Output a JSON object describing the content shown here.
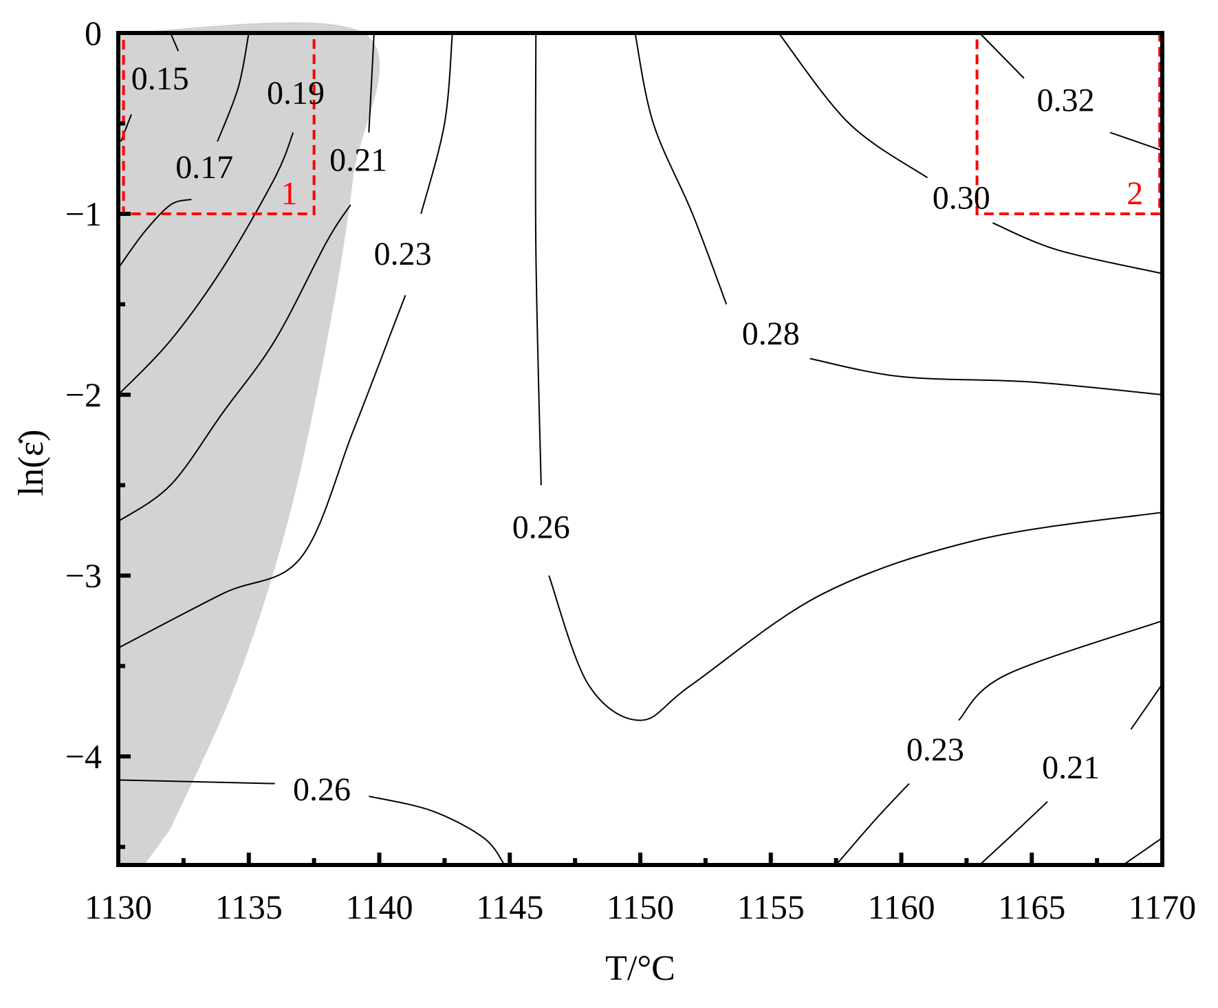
{
  "chart_data": {
    "type": "contour",
    "xlabel": "T/°C",
    "ylabel": "ln(ε̇)",
    "xlim": [
      1130,
      1170
    ],
    "ylim": [
      -4.6,
      0
    ],
    "xticks": [
      1130,
      1135,
      1140,
      1145,
      1150,
      1155,
      1160,
      1165,
      1170
    ],
    "yticks": [
      0,
      -1,
      -2,
      -3,
      -4
    ],
    "grid": false,
    "colors": {
      "shaded_region": "#d3d3d3",
      "contour_line": "#000000",
      "highlight_box": "#ff0000"
    },
    "shaded_region": [
      [
        1130,
        0
      ],
      [
        1139.4,
        0
      ],
      [
        1139,
        -0.8
      ],
      [
        1138,
        -1.7
      ],
      [
        1136.5,
        -2.7
      ],
      [
        1134.5,
        -3.6
      ],
      [
        1132,
        -4.4
      ],
      [
        1131,
        -4.6
      ],
      [
        1130,
        -4.6
      ]
    ],
    "contours": [
      {
        "label": "0.15",
        "label_at": [
          1131.6,
          -0.27
        ],
        "points": [
          [
            1132,
            0
          ],
          [
            1132.3,
            -0.1
          ]
        ]
      },
      {
        "label": "0.15",
        "label_at": null,
        "points": [
          [
            1130.1,
            -0.6
          ],
          [
            1130.5,
            -0.45
          ]
        ]
      },
      {
        "label": "0.17",
        "label_at": [
          1133.3,
          -0.76
        ],
        "points": [
          [
            1130,
            -1.3
          ],
          [
            1131,
            -1.1
          ],
          [
            1132,
            -0.95
          ],
          [
            1132.8,
            -0.92
          ]
        ]
      },
      {
        "label": "0.17",
        "label_at": null,
        "points": [
          [
            1133.8,
            -0.6
          ],
          [
            1134.6,
            -0.3
          ],
          [
            1135,
            0
          ]
        ]
      },
      {
        "label": "0.19",
        "label_at": [
          1136.8,
          -0.35
        ],
        "points": [
          [
            1130,
            -2.0
          ],
          [
            1132,
            -1.7
          ],
          [
            1134,
            -1.3
          ],
          [
            1136,
            -0.8
          ],
          [
            1136.7,
            -0.55
          ]
        ]
      },
      {
        "label": "0.19",
        "label_at": null,
        "points": [
          [
            1137.6,
            0
          ]
        ]
      },
      {
        "label": "0.21",
        "label_at": [
          1139.2,
          -0.72
        ],
        "points": [
          [
            1130,
            -2.7
          ],
          [
            1132,
            -2.5
          ],
          [
            1134,
            -2.1
          ],
          [
            1136,
            -1.7
          ],
          [
            1138,
            -1.15
          ],
          [
            1138.9,
            -0.95
          ]
        ]
      },
      {
        "label": "0.21",
        "label_at": null,
        "points": [
          [
            1139.6,
            -0.55
          ],
          [
            1139.8,
            0
          ]
        ]
      },
      {
        "label": "0.23",
        "label_at": [
          1140.9,
          -1.24
        ],
        "points": [
          [
            1130,
            -3.4
          ],
          [
            1134,
            -3.1
          ],
          [
            1137,
            -2.9
          ],
          [
            1139,
            -2.2
          ],
          [
            1140.6,
            -1.6
          ],
          [
            1141,
            -1.45
          ]
        ]
      },
      {
        "label": "0.23",
        "label_at": null,
        "points": [
          [
            1141.6,
            -1.0
          ],
          [
            1142.5,
            -0.5
          ],
          [
            1142.8,
            0
          ]
        ]
      },
      {
        "label": "0.26",
        "label_at": [
          1146.2,
          -2.75
        ],
        "points": [
          [
            1146,
            0
          ],
          [
            1146,
            -1.2
          ],
          [
            1146.2,
            -2.5
          ]
        ]
      },
      {
        "label": "0.26",
        "label_at": null,
        "points": [
          [
            1146.5,
            -3.0
          ],
          [
            1148,
            -3.6
          ],
          [
            1150,
            -3.8
          ],
          [
            1152,
            -3.6
          ],
          [
            1157,
            -3.1
          ],
          [
            1163,
            -2.8
          ],
          [
            1170,
            -2.65
          ]
        ]
      },
      {
        "label": "0.28",
        "label_at": [
          1155,
          -1.68
        ],
        "points": [
          [
            1149.8,
            0
          ],
          [
            1150.5,
            -0.5
          ],
          [
            1152,
            -1.0
          ],
          [
            1153.3,
            -1.5
          ]
        ]
      },
      {
        "label": "0.28",
        "label_at": null,
        "points": [
          [
            1156.5,
            -1.8
          ],
          [
            1160,
            -1.9
          ],
          [
            1165,
            -1.93
          ],
          [
            1170,
            -2.0
          ]
        ]
      },
      {
        "label": "0.30",
        "label_at": [
          1162.3,
          -0.93
        ],
        "points": [
          [
            1155.3,
            0
          ],
          [
            1158,
            -0.5
          ],
          [
            1161,
            -0.8
          ]
        ]
      },
      {
        "label": "0.30",
        "label_at": null,
        "points": [
          [
            1163.5,
            -1.05
          ],
          [
            1166,
            -1.2
          ],
          [
            1170,
            -1.33
          ]
        ]
      },
      {
        "label": "0.32",
        "label_at": [
          1166.3,
          -0.39
        ],
        "points": [
          [
            1163,
            0
          ],
          [
            1164.7,
            -0.25
          ]
        ]
      },
      {
        "label": "0.32",
        "label_at": null,
        "points": [
          [
            1168,
            -0.55
          ],
          [
            1170,
            -0.65
          ]
        ]
      },
      {
        "label": "0.26",
        "label_at": [
          1137.8,
          -4.2
        ],
        "points": [
          [
            1130,
            -4.13
          ],
          [
            1136,
            -4.15
          ]
        ]
      },
      {
        "label": "0.26",
        "label_at": null,
        "points": [
          [
            1139.6,
            -4.22
          ],
          [
            1142,
            -4.3
          ],
          [
            1144,
            -4.45
          ],
          [
            1144.8,
            -4.6
          ]
        ]
      },
      {
        "label": "0.23",
        "label_at": [
          1161.3,
          -3.98
        ],
        "points": [
          [
            1157.5,
            -4.6
          ],
          [
            1159,
            -4.35
          ],
          [
            1160.3,
            -4.15
          ]
        ]
      },
      {
        "label": "0.23",
        "label_at": null,
        "points": [
          [
            1162.2,
            -3.8
          ],
          [
            1164,
            -3.55
          ],
          [
            1170,
            -3.25
          ]
        ]
      },
      {
        "label": "0.21",
        "label_at": [
          1166.5,
          -4.08
        ],
        "points": [
          [
            1163,
            -4.6
          ],
          [
            1164.5,
            -4.4
          ],
          [
            1165.6,
            -4.25
          ]
        ]
      },
      {
        "label": "0.21",
        "label_at": null,
        "points": [
          [
            1168.8,
            -3.85
          ],
          [
            1170,
            -3.6
          ]
        ]
      },
      {
        "label": "",
        "label_at": null,
        "points": [
          [
            1168.5,
            -4.6
          ],
          [
            1170,
            -4.45
          ]
        ]
      }
    ],
    "regions": [
      {
        "label": "1",
        "x": [
          1130.2,
          1137.5
        ],
        "y": [
          -1.0,
          0
        ]
      },
      {
        "label": "2",
        "x": [
          1162.9,
          1169.9
        ],
        "y": [
          -1.0,
          0
        ]
      }
    ]
  }
}
